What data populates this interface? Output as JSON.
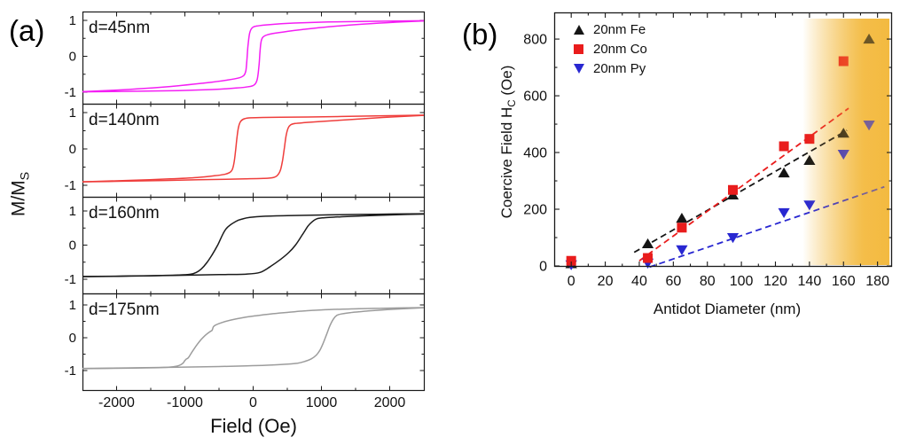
{
  "figure": {
    "panel_a_label": "(a)",
    "panel_b_label": "(b)"
  },
  "chart_data": [
    {
      "id": "panel_a",
      "type": "line",
      "xlabel": "Field (Oe)",
      "ylabel": "M/M_S",
      "ylabel_main": "M/M",
      "ylabel_sub": "S",
      "xlim": [
        -2500,
        2500
      ],
      "ylim": [
        -1.3,
        1.3
      ],
      "xticks": [
        -2000,
        -1000,
        0,
        1000,
        2000
      ],
      "xtick_minor_step": 500,
      "yticks": [
        1,
        0,
        -1
      ],
      "grid": false,
      "subplots": [
        {
          "label": "d=45nm",
          "color": "#f41ef4",
          "ascending": [
            [
              -2500,
              -0.99
            ],
            [
              -1800,
              -0.975
            ],
            [
              -1100,
              -0.955
            ],
            [
              -600,
              -0.925
            ],
            [
              -250,
              -0.885
            ],
            [
              -60,
              -0.845
            ],
            [
              20,
              -0.79
            ],
            [
              60,
              -0.64
            ],
            [
              85,
              -0.28
            ],
            [
              100,
              0.12
            ],
            [
              115,
              0.4
            ],
            [
              142,
              0.53
            ],
            [
              210,
              0.6
            ],
            [
              380,
              0.66
            ],
            [
              700,
              0.74
            ],
            [
              1100,
              0.82
            ],
            [
              1600,
              0.895
            ],
            [
              2100,
              0.95
            ],
            [
              2500,
              0.985
            ]
          ],
          "descending": [
            [
              2500,
              0.99
            ],
            [
              1800,
              0.975
            ],
            [
              1100,
              0.955
            ],
            [
              600,
              0.925
            ],
            [
              250,
              0.885
            ],
            [
              60,
              0.845
            ],
            [
              -15,
              0.79
            ],
            [
              -52,
              0.64
            ],
            [
              -76,
              0.28
            ],
            [
              -92,
              -0.12
            ],
            [
              -107,
              -0.4
            ],
            [
              -135,
              -0.53
            ],
            [
              -205,
              -0.6
            ],
            [
              -375,
              -0.66
            ],
            [
              -695,
              -0.74
            ],
            [
              -1095,
              -0.82
            ],
            [
              -1595,
              -0.895
            ],
            [
              -2095,
              -0.95
            ],
            [
              -2500,
              -0.985
            ]
          ]
        },
        {
          "label": "d=140nm",
          "color": "#ef3e3c",
          "ascending": [
            [
              -2500,
              -0.905
            ],
            [
              -1900,
              -0.888
            ],
            [
              -1300,
              -0.868
            ],
            [
              -800,
              -0.848
            ],
            [
              -400,
              -0.833
            ],
            [
              -100,
              -0.822
            ],
            [
              150,
              -0.812
            ],
            [
              290,
              -0.79
            ],
            [
              355,
              -0.73
            ],
            [
              400,
              -0.58
            ],
            [
              432,
              -0.3
            ],
            [
              458,
              0.04
            ],
            [
              483,
              0.37
            ],
            [
              512,
              0.57
            ],
            [
              548,
              0.66
            ],
            [
              615,
              0.7
            ],
            [
              760,
              0.725
            ],
            [
              1000,
              0.755
            ],
            [
              1400,
              0.805
            ],
            [
              1900,
              0.865
            ],
            [
              2500,
              0.925
            ]
          ],
          "descending": [
            [
              2500,
              0.93
            ],
            [
              1900,
              0.912
            ],
            [
              1300,
              0.893
            ],
            [
              800,
              0.879
            ],
            [
              400,
              0.871
            ],
            [
              150,
              0.866
            ],
            [
              -30,
              0.856
            ],
            [
              -125,
              0.832
            ],
            [
              -182,
              0.76
            ],
            [
              -214,
              0.6
            ],
            [
              -238,
              0.3
            ],
            [
              -258,
              -0.06
            ],
            [
              -280,
              -0.38
            ],
            [
              -307,
              -0.57
            ],
            [
              -345,
              -0.65
            ],
            [
              -420,
              -0.7
            ],
            [
              -570,
              -0.74
            ],
            [
              -820,
              -0.785
            ],
            [
              -1220,
              -0.825
            ],
            [
              -1720,
              -0.86
            ],
            [
              -2200,
              -0.888
            ],
            [
              -2500,
              -0.905
            ]
          ]
        },
        {
          "label": "d=160nm",
          "color": "#1b1b1b",
          "ascending": [
            [
              -2500,
              -0.92
            ],
            [
              -1800,
              -0.905
            ],
            [
              -1100,
              -0.885
            ],
            [
              -500,
              -0.866
            ],
            [
              -100,
              -0.85
            ],
            [
              100,
              -0.8
            ],
            [
              250,
              -0.63
            ],
            [
              400,
              -0.42
            ],
            [
              520,
              -0.22
            ],
            [
              620,
              0.0
            ],
            [
              720,
              0.3
            ],
            [
              800,
              0.55
            ],
            [
              862,
              0.68
            ],
            [
              930,
              0.77
            ],
            [
              1030,
              0.8
            ],
            [
              1300,
              0.83
            ],
            [
              1800,
              0.87
            ],
            [
              2200,
              0.895
            ],
            [
              2500,
              0.91
            ]
          ],
          "descending": [
            [
              2500,
              0.92
            ],
            [
              1800,
              0.905
            ],
            [
              1100,
              0.885
            ],
            [
              500,
              0.866
            ],
            [
              150,
              0.845
            ],
            [
              -50,
              0.81
            ],
            [
              -150,
              0.77
            ],
            [
              -250,
              0.7
            ],
            [
              -400,
              0.47
            ],
            [
              -520,
              0.0
            ],
            [
              -600,
              -0.28
            ],
            [
              -680,
              -0.52
            ],
            [
              -760,
              -0.7
            ],
            [
              -832,
              -0.8
            ],
            [
              -920,
              -0.855
            ],
            [
              -1100,
              -0.878
            ],
            [
              -1500,
              -0.9
            ],
            [
              -2000,
              -0.915
            ],
            [
              -2500,
              -0.925
            ]
          ]
        },
        {
          "label": "d=175nm",
          "color": "#9c9c9c",
          "ascending": [
            [
              -2500,
              -0.935
            ],
            [
              -1800,
              -0.92
            ],
            [
              -1100,
              -0.9
            ],
            [
              -500,
              -0.878
            ],
            [
              -100,
              -0.858
            ],
            [
              200,
              -0.838
            ],
            [
              450,
              -0.812
            ],
            [
              650,
              -0.775
            ],
            [
              760,
              -0.72
            ],
            [
              850,
              -0.645
            ],
            [
              925,
              -0.53
            ],
            [
              975,
              -0.39
            ],
            [
              1025,
              -0.17
            ],
            [
              1075,
              0.1
            ],
            [
              1125,
              0.37
            ],
            [
              1175,
              0.57
            ],
            [
              1225,
              0.68
            ],
            [
              1290,
              0.725
            ],
            [
              1420,
              0.765
            ],
            [
              1680,
              0.815
            ],
            [
              2050,
              0.868
            ],
            [
              2500,
              0.915
            ]
          ],
          "descending": [
            [
              2500,
              0.92
            ],
            [
              1900,
              0.9
            ],
            [
              1400,
              0.877
            ],
            [
              1000,
              0.848
            ],
            [
              700,
              0.81
            ],
            [
              450,
              0.762
            ],
            [
              250,
              0.722
            ],
            [
              50,
              0.672
            ],
            [
              -150,
              0.612
            ],
            [
              -330,
              0.538
            ],
            [
              -460,
              0.462
            ],
            [
              -545,
              0.392
            ],
            [
              -582,
              0.335
            ],
            [
              -602,
              0.225
            ],
            [
              -634,
              0.182
            ],
            [
              -700,
              0.075
            ],
            [
              -762,
              -0.055
            ],
            [
              -822,
              -0.21
            ],
            [
              -872,
              -0.36
            ],
            [
              -916,
              -0.5
            ],
            [
              -950,
              -0.612
            ],
            [
              -980,
              -0.652
            ],
            [
              -1002,
              -0.7
            ],
            [
              -1026,
              -0.772
            ],
            [
              -1062,
              -0.825
            ],
            [
              -1122,
              -0.868
            ],
            [
              -1222,
              -0.895
            ],
            [
              -1450,
              -0.915
            ],
            [
              -1900,
              -0.93
            ],
            [
              -2500,
              -0.942
            ]
          ]
        }
      ]
    },
    {
      "id": "panel_b",
      "type": "scatter",
      "xlabel": "Antidot Diameter (nm)",
      "ylabel": "Coercive Field H_C (Oe)",
      "ylabel_main": "Coercive Field H",
      "ylabel_sub": "C",
      "ylabel_unit": " (Oe)",
      "xlim": [
        -10,
        188
      ],
      "ylim": [
        0,
        894
      ],
      "xticks": [
        0,
        20,
        40,
        60,
        80,
        100,
        120,
        140,
        160,
        180
      ],
      "xtick_minor_step": 10,
      "yticks": [
        0,
        200,
        400,
        600,
        800
      ],
      "ytick_minor_step": 100,
      "grid": false,
      "legend_position": "top-left",
      "series": [
        {
          "name": "20nm Fe",
          "marker": "triangle-up",
          "color": "#151515",
          "points": [
            [
              0,
              8
            ],
            [
              45,
              78
            ],
            [
              65,
              168
            ],
            [
              95,
              250
            ],
            [
              125,
              328
            ],
            [
              140,
              372
            ],
            [
              160,
              468
            ],
            [
              175,
              800
            ]
          ],
          "trend": [
            [
              37,
              48
            ],
            [
              162,
              478
            ]
          ]
        },
        {
          "name": "20nm Co",
          "marker": "square",
          "color": "#e91c1c",
          "points": [
            [
              0,
              18
            ],
            [
              45,
              28
            ],
            [
              65,
              135
            ],
            [
              95,
              268
            ],
            [
              125,
              422
            ],
            [
              140,
              448
            ],
            [
              160,
              722
            ]
          ],
          "trend": [
            [
              40,
              18
            ],
            [
              163,
              556
            ]
          ]
        },
        {
          "name": "20nm Py",
          "marker": "triangle-down",
          "color": "#2827d1",
          "points": [
            [
              0,
              4
            ],
            [
              45,
              10
            ],
            [
              65,
              57
            ],
            [
              95,
              100
            ],
            [
              125,
              188
            ],
            [
              140,
              215
            ],
            [
              160,
              394
            ],
            [
              175,
              497
            ]
          ],
          "trend": [
            [
              46,
              -4
            ],
            [
              184,
              279
            ]
          ]
        }
      ],
      "highlight_band": {
        "x_start_nm": 136,
        "x_end_nm": 187,
        "color": "#f3ba40"
      }
    }
  ]
}
